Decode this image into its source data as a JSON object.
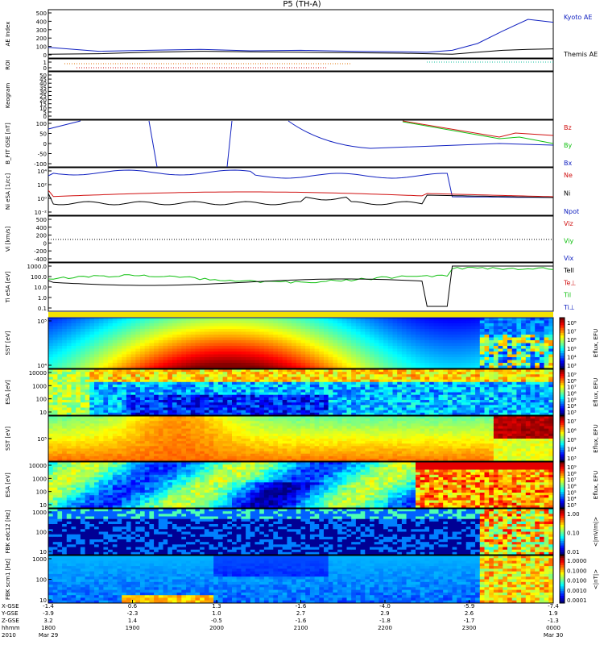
{
  "title": "P5 (TH-A)",
  "colors": {
    "blue": "#1020c0",
    "red": "#d01010",
    "green": "#10c010",
    "black": "#000000"
  },
  "chart_data": [
    {
      "type": "line",
      "title": "P5 (TH-A)",
      "ylabel": "AE Index",
      "ylim": [
        0,
        500
      ],
      "yticks": [
        "500",
        "400",
        "300",
        "200",
        "100",
        "0"
      ],
      "legend": [
        {
          "name": "Kyoto AE",
          "color": "#1020c0"
        },
        {
          "name": "Themis AE",
          "color": "#000000"
        }
      ],
      "series": [
        {
          "name": "Kyoto AE",
          "color": "#1020c0",
          "x": [
            0,
            10,
            20,
            30,
            40,
            50,
            60,
            70,
            75,
            80,
            85,
            90,
            95,
            100
          ],
          "y": [
            110,
            70,
            80,
            90,
            75,
            80,
            70,
            65,
            60,
            80,
            150,
            280,
            400,
            370
          ]
        },
        {
          "name": "Themis AE",
          "color": "#000000",
          "x": [
            0,
            10,
            20,
            30,
            40,
            50,
            60,
            70,
            75,
            80,
            85,
            90,
            95,
            100
          ],
          "y": [
            40,
            45,
            60,
            70,
            65,
            60,
            55,
            50,
            45,
            40,
            60,
            80,
            90,
            95
          ]
        }
      ]
    },
    {
      "type": "line",
      "ylabel": "ROI",
      "ylim": [
        0,
        1
      ],
      "yticks": [
        "1",
        "0"
      ]
    },
    {
      "type": "heatmap",
      "ylabel": "Keogram",
      "yticks": [
        "50",
        "45",
        "40",
        "35",
        "30",
        "25",
        "20",
        "15",
        "10",
        "5",
        "0"
      ]
    },
    {
      "type": "line",
      "ylabel": "B_FIT GSE [nT]",
      "ylim": [
        -100,
        100
      ],
      "yticks": [
        "100",
        "50",
        "0",
        "-50",
        "-100"
      ],
      "legend": [
        {
          "name": "Bz",
          "color": "#d01010"
        },
        {
          "name": "By",
          "color": "#10c010"
        },
        {
          "name": "Bx",
          "color": "#1020c0"
        }
      ]
    },
    {
      "type": "line",
      "ylabel": "Ni eSA [1/cc]",
      "yticks": [
        "10⁴",
        "10²",
        "10⁰",
        "10⁻²"
      ],
      "legend": [
        {
          "name": "Ne",
          "color": "#d01010"
        },
        {
          "name": "Ni",
          "color": "#000000"
        },
        {
          "name": "Npot",
          "color": "#1020c0"
        }
      ]
    },
    {
      "type": "line",
      "ylabel": "Vi [km/s]",
      "ylim": [
        -500,
        500
      ],
      "yticks": [
        "500",
        "400",
        "200",
        "0",
        "-200",
        "-400"
      ],
      "legend": [
        {
          "name": "Viz",
          "color": "#d01010"
        },
        {
          "name": "Viy",
          "color": "#10c010"
        },
        {
          "name": "Vix",
          "color": "#1020c0"
        }
      ]
    },
    {
      "type": "line",
      "ylabel": "Ti eSA [eV]",
      "yticks": [
        "1000.0",
        "100.0",
        "10.0",
        "1.0",
        "0.1"
      ],
      "legend": [
        {
          "name": "Tell",
          "color": "#000000"
        },
        {
          "name": "Te⊥",
          "color": "#d01010"
        },
        {
          "name": "Til",
          "color": "#10c010"
        },
        {
          "name": "Ti⊥",
          "color": "#1020c0"
        }
      ]
    },
    {
      "type": "heatmap",
      "ylabel": "SST [eV]",
      "yticks": [
        "10⁵",
        "10⁴"
      ],
      "colorbar": [
        "10⁸",
        "10⁷",
        "10⁶",
        "10⁵",
        "10⁴",
        "10³"
      ],
      "cblabel": "Eflux, EFU"
    },
    {
      "type": "heatmap",
      "ylabel": "ESA [eV]",
      "yticks": [
        "10000",
        "1000",
        "100",
        "10"
      ],
      "colorbar": [
        "10⁹",
        "10⁸",
        "10⁷",
        "10⁶",
        "10⁵",
        "10⁴",
        "10³"
      ],
      "cblabel": "Eflux, EFU"
    },
    {
      "type": "heatmap",
      "ylabel": "SST [eV]",
      "yticks": [
        "10⁵"
      ],
      "colorbar": [
        "10⁷",
        "10⁶",
        "10⁵",
        "10⁴",
        "10³"
      ],
      "cblabel": "Eflux, EFU"
    },
    {
      "type": "heatmap",
      "ylabel": "ESA [eV]",
      "yticks": [
        "10000",
        "1000",
        "100",
        "10"
      ],
      "colorbar": [
        "10⁹",
        "10⁸",
        "10⁷",
        "10⁶",
        "10⁵",
        "10⁴",
        "10³"
      ],
      "cblabel": "Eflux, EFU"
    },
    {
      "type": "heatmap",
      "ylabel": "FBK edc12 [Hz]",
      "yticks": [
        "1000",
        "100",
        "10"
      ],
      "colorbar": [
        "1.00",
        "0.10",
        "0.01"
      ],
      "cblabel": "<|mV/m|>"
    },
    {
      "type": "heatmap",
      "ylabel": "FBK scm1 [Hz]",
      "yticks": [
        "1000",
        "100",
        "10"
      ],
      "colorbar": [
        "1.0000",
        "0.1000",
        "0.0100",
        "0.0010",
        "0.0001"
      ],
      "cblabel": "<|nT|>"
    }
  ],
  "xaxis": {
    "row_labels": [
      "X-GSE",
      "Y-GSE",
      "Z-GSE",
      "hhmm",
      "2010"
    ],
    "ticks": [
      {
        "vals": [
          "-1.4",
          "-3.9",
          "3.2",
          "1800",
          "Mar 29"
        ]
      },
      {
        "vals": [
          "0.6",
          "-2.3",
          "1.4",
          "1900",
          ""
        ]
      },
      {
        "vals": [
          "1.3",
          "1.0",
          "-0.5",
          "2000",
          ""
        ]
      },
      {
        "vals": [
          "-1.6",
          "2.7",
          "-1.6",
          "2100",
          ""
        ]
      },
      {
        "vals": [
          "-4.0",
          "2.9",
          "-1.8",
          "2200",
          ""
        ]
      },
      {
        "vals": [
          "-5.9",
          "2.6",
          "-1.7",
          "2300",
          ""
        ]
      },
      {
        "vals": [
          "-7.4",
          "1.9",
          "-1.3",
          "0000",
          "Mar 30"
        ]
      }
    ]
  }
}
